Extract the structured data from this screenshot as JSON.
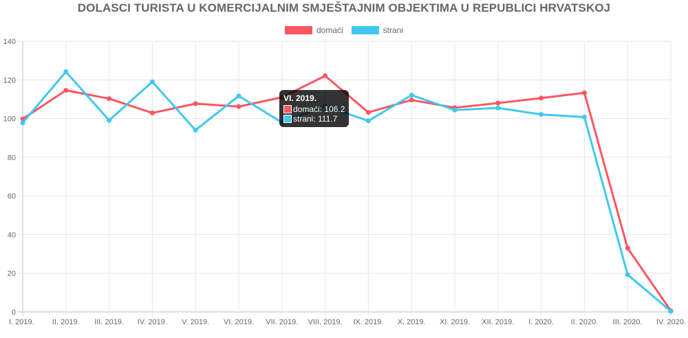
{
  "chart_data": {
    "type": "line",
    "title": "DOLASCI TURISTA U KOMERCIJALNIM SMJEŠTAJNIM OBJEKTIMA U REPUBLICI HRVATSKOJ",
    "categories": [
      "I. 2019.",
      "II. 2019.",
      "III. 2019.",
      "IV. 2019.",
      "V. 2019.",
      "VI. 2019.",
      "VII. 2019.",
      "VIII. 2019.",
      "IX. 2019.",
      "X. 2019.",
      "XI. 2019.",
      "XII. 2019.",
      "I. 2020.",
      "II. 2020.",
      "III. 2020.",
      "IV. 2020."
    ],
    "series": [
      {
        "name": "domaći",
        "color": "#ff5563",
        "values": [
          99.8,
          114.6,
          110.3,
          102.9,
          107.7,
          106.2,
          111.0,
          122.1,
          103.2,
          109.6,
          105.6,
          108.0,
          110.6,
          113.3,
          33.0,
          0.6
        ]
      },
      {
        "name": "strani",
        "color": "#40c8ef",
        "values": [
          97.8,
          124.2,
          99.1,
          119.0,
          94.0,
          111.7,
          98.0,
          106.5,
          98.8,
          112.1,
          104.4,
          105.5,
          102.1,
          100.8,
          19.3,
          0.3
        ]
      }
    ],
    "ylim": [
      0,
      140
    ],
    "yticks": [
      0,
      20,
      40,
      60,
      80,
      100,
      120,
      140
    ],
    "grid": true,
    "legend_position": "top"
  },
  "tooltip": {
    "title": "VI. 2019.",
    "rows": [
      "domaći: 106.2",
      "strani: 111.7"
    ]
  }
}
